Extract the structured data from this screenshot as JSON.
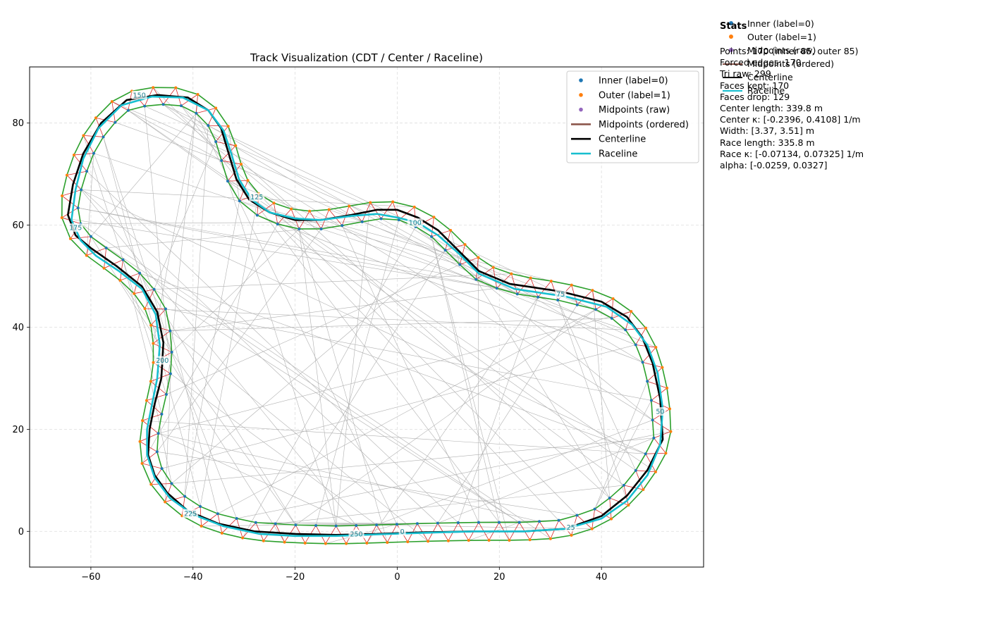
{
  "chart_data": {
    "type": "line",
    "title": "Track Visualization (CDT / Center / Raceline)",
    "xlim": [
      -72,
      60
    ],
    "ylim": [
      -7,
      91
    ],
    "xticks": [
      -60,
      -40,
      -20,
      0,
      20,
      40
    ],
    "yticks": [
      0,
      20,
      40,
      60,
      80
    ],
    "xlabel": "",
    "ylabel": "",
    "grid": true,
    "legend_position": "upper right",
    "legend": [
      {
        "label": "Inner (label=0)",
        "kind": "dot",
        "color": "#1f77b4"
      },
      {
        "label": "Outer (label=1)",
        "kind": "dot",
        "color": "#ff7f0e"
      },
      {
        "label": "Midpoints (raw)",
        "kind": "dot",
        "color": "#9467bd"
      },
      {
        "label": "Midpoints (ordered)",
        "kind": "line",
        "color": "#8c564b"
      },
      {
        "label": "Centerline",
        "kind": "line",
        "color": "#000000"
      },
      {
        "label": "Raceline",
        "kind": "line",
        "color": "#17becf"
      }
    ],
    "colors": {
      "inner": "#1f77b4",
      "outer": "#ff7f0e",
      "boundary": "#2ca02c",
      "forced_edges": "#d62728",
      "triangulation": "#b0b0b0",
      "centerline": "#000000",
      "raceline": "#17becf",
      "index_labels": "#1a7f8e"
    },
    "centerline_points": [
      [
        -4,
        -0.5
      ],
      [
        5,
        -0.2
      ],
      [
        15,
        0
      ],
      [
        25,
        0
      ],
      [
        33,
        0.5
      ],
      [
        40,
        3
      ],
      [
        45,
        7
      ],
      [
        49,
        12
      ],
      [
        52,
        18
      ],
      [
        51.5,
        26
      ],
      [
        50,
        33
      ],
      [
        48,
        38
      ],
      [
        45,
        42
      ],
      [
        40,
        45
      ],
      [
        32,
        47
      ],
      [
        22,
        48.5
      ],
      [
        16,
        51
      ],
      [
        12,
        55
      ],
      [
        8,
        59
      ],
      [
        4,
        61.5
      ],
      [
        0,
        63
      ],
      [
        -4,
        63
      ],
      [
        -9,
        62
      ],
      [
        -15,
        61
      ],
      [
        -20,
        61
      ],
      [
        -25,
        62.5
      ],
      [
        -29,
        65
      ],
      [
        -31.5,
        69
      ],
      [
        -33,
        74
      ],
      [
        -34.5,
        79
      ],
      [
        -37,
        82.5
      ],
      [
        -41,
        85
      ],
      [
        -47,
        85.5
      ],
      [
        -53,
        84.5
      ],
      [
        -58,
        80
      ],
      [
        -61.5,
        74
      ],
      [
        -63.5,
        68
      ],
      [
        -64.5,
        62
      ],
      [
        -63,
        58
      ],
      [
        -60,
        55.5
      ],
      [
        -55,
        52
      ],
      [
        -50,
        48
      ],
      [
        -47,
        43
      ],
      [
        -45.8,
        37
      ],
      [
        -46.2,
        30
      ],
      [
        -47.5,
        25
      ],
      [
        -48.5,
        20
      ],
      [
        -48.8,
        15
      ],
      [
        -47.5,
        11
      ],
      [
        -45,
        7.5
      ],
      [
        -41,
        4
      ],
      [
        -35,
        1.5
      ],
      [
        -28,
        0
      ],
      [
        -20,
        -0.5
      ],
      [
        -12,
        -0.7
      ],
      [
        -4,
        -0.5
      ]
    ],
    "raceline_points": [
      [
        -4,
        -0.6
      ],
      [
        5,
        -0.3
      ],
      [
        15,
        0
      ],
      [
        25,
        0
      ],
      [
        33,
        0.5
      ],
      [
        40,
        2.5
      ],
      [
        45,
        6
      ],
      [
        49,
        11
      ],
      [
        51.5,
        17
      ],
      [
        52,
        24
      ],
      [
        51,
        31
      ],
      [
        49,
        36.5
      ],
      [
        46,
        40.5
      ],
      [
        41,
        44
      ],
      [
        33,
        46
      ],
      [
        23,
        47.5
      ],
      [
        16,
        50.5
      ],
      [
        12,
        54.5
      ],
      [
        8,
        58
      ],
      [
        4,
        60.5
      ],
      [
        0,
        61.5
      ],
      [
        -4,
        62.2
      ],
      [
        -9,
        61.8
      ],
      [
        -15,
        61
      ],
      [
        -20,
        61.3
      ],
      [
        -25,
        62.5
      ],
      [
        -28.5,
        65
      ],
      [
        -31,
        69
      ],
      [
        -32.5,
        74
      ],
      [
        -34,
        78.5
      ],
      [
        -37,
        82.5
      ],
      [
        -42,
        85
      ],
      [
        -48,
        85.2
      ],
      [
        -54,
        83.5
      ],
      [
        -58.5,
        79
      ],
      [
        -61.5,
        73
      ],
      [
        -63,
        67
      ],
      [
        -63.8,
        61
      ],
      [
        -62,
        57
      ],
      [
        -59,
        54
      ],
      [
        -54.5,
        51
      ],
      [
        -50,
        47.5
      ],
      [
        -47.3,
        42.5
      ],
      [
        -46.5,
        36.5
      ],
      [
        -47,
        30
      ],
      [
        -48,
        25
      ],
      [
        -49,
        20
      ],
      [
        -49,
        15
      ],
      [
        -47.5,
        10.5
      ],
      [
        -44.5,
        6.5
      ],
      [
        -40,
        3.3
      ],
      [
        -34,
        1
      ],
      [
        -27,
        -0.5
      ],
      [
        -20,
        -0.9
      ],
      [
        -12,
        -0.9
      ],
      [
        -4,
        -0.6
      ]
    ],
    "index_labels": [
      {
        "text": "0",
        "x": 1,
        "y": 0
      },
      {
        "text": "25",
        "x": 34,
        "y": 0.8
      },
      {
        "text": "50",
        "x": 51.5,
        "y": 23.5
      },
      {
        "text": "75",
        "x": 32,
        "y": 46.5
      },
      {
        "text": "100",
        "x": 3.5,
        "y": 60.5
      },
      {
        "text": "125",
        "x": -27.5,
        "y": 65.5
      },
      {
        "text": "150",
        "x": -50.5,
        "y": 85.5
      },
      {
        "text": "175",
        "x": -63,
        "y": 59.5
      },
      {
        "text": "200",
        "x": -46,
        "y": 33.5
      },
      {
        "text": "225",
        "x": -40.5,
        "y": 3.5
      },
      {
        "text": "250",
        "x": -8,
        "y": -0.5
      }
    ]
  },
  "side_legend": [
    {
      "label": "Inner (label=0)",
      "kind": "dot",
      "color": "#1f77b4"
    },
    {
      "label": "Outer (label=1)",
      "kind": "dot",
      "color": "#ff7f0e"
    },
    {
      "label": "Midpoints (raw)",
      "kind": "dot",
      "color": "#9467bd"
    },
    {
      "label": "Midpoints (ordered)",
      "kind": "line",
      "color": "#8c564b"
    },
    {
      "label": "Centerline",
      "kind": "line",
      "color": "#000000"
    },
    {
      "label": "Raceline",
      "kind": "line",
      "color": "#17becf"
    }
  ],
  "stats": {
    "title": "Stats",
    "lines": [
      "Points: 170 (inner 85, outer 85)",
      "Forced edges: 170",
      "Tri raw: 299",
      "Faces kept: 170",
      "Faces drop: 129",
      "Center length: 339.8 m",
      "Center κ: [-0.2396, 0.4108] 1/m",
      "Width: [3.37, 3.51] m",
      "Race length: 335.8 m",
      "Race κ: [-0.07134, 0.07325] 1/m",
      "alpha: [-0.0259, 0.0327]"
    ]
  }
}
